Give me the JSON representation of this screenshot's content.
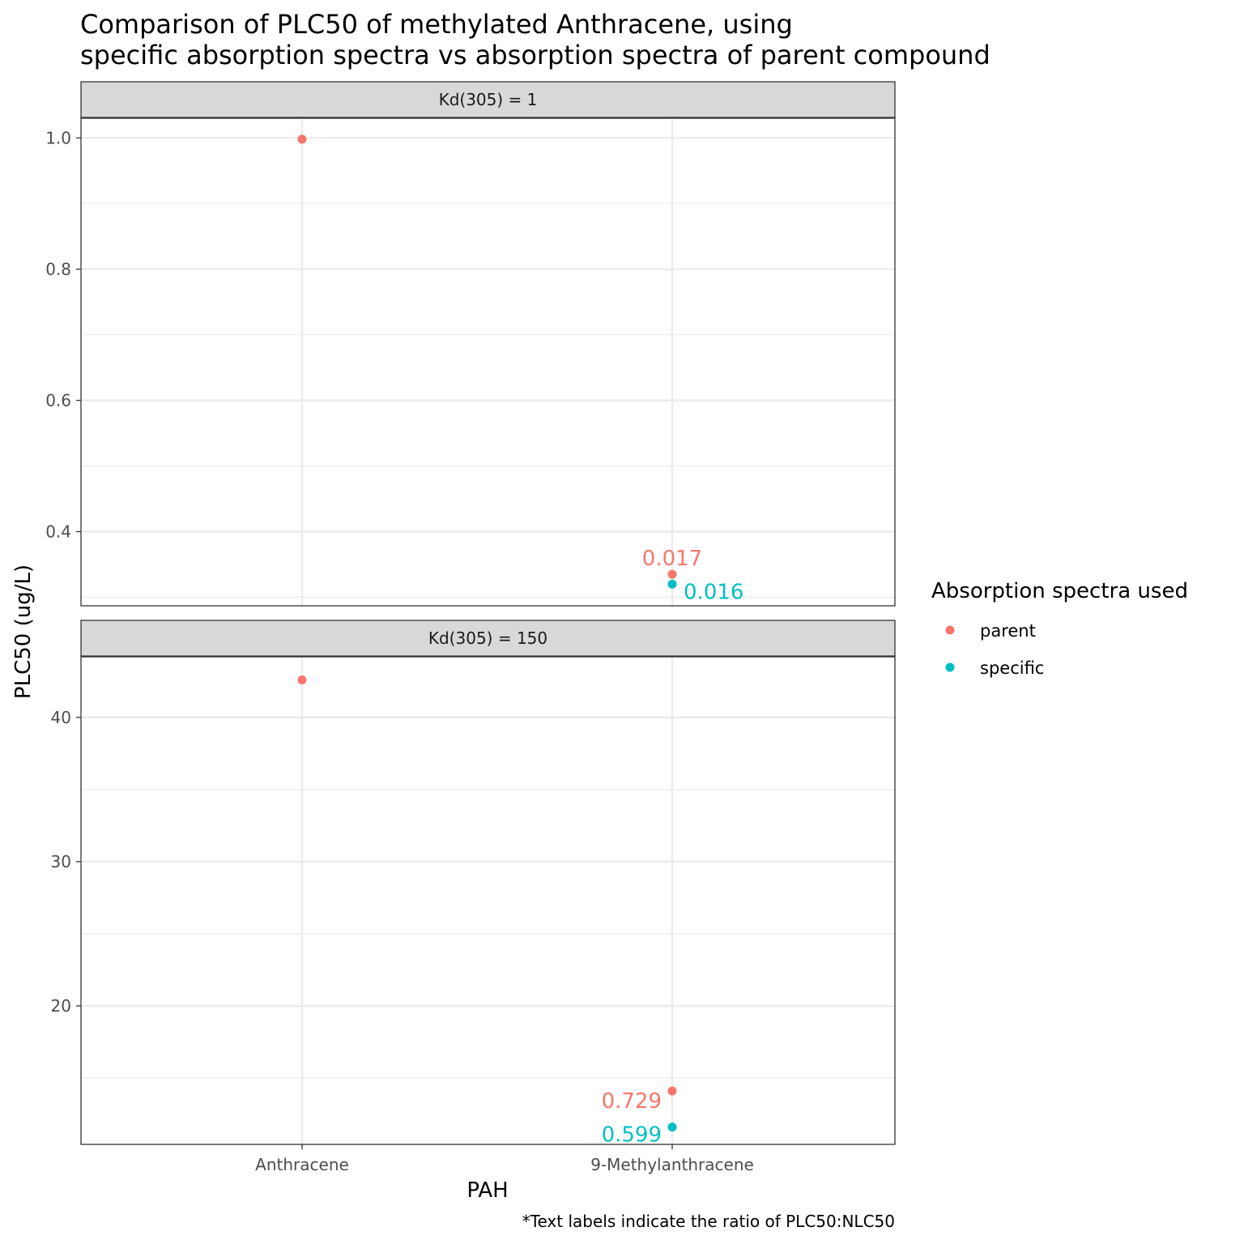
{
  "chart_data": {
    "type": "scatter",
    "title_lines": [
      "Comparison of PLC50 of methylated Anthracene, using",
      "specific absorption spectra vs absorption spectra of parent compound"
    ],
    "xlabel": "PAH",
    "ylabel": "PLC50 (ug/L)",
    "caption": "*Text labels indicate the ratio of PLC50:NLC50",
    "categories": [
      "Anthracene",
      "9-Methylanthracene"
    ],
    "legend": {
      "title": "Absorption spectra used",
      "position": "right",
      "entries": [
        {
          "name": "parent",
          "color": "#F8766D"
        },
        {
          "name": "specific",
          "color": "#00BFC4"
        }
      ]
    },
    "panels": [
      {
        "strip": "Kd(305) = 1",
        "ylim": [
          0.287,
          1.03
        ],
        "yticks": [
          0.4,
          0.6,
          0.8,
          1.0
        ],
        "ytick_labels": [
          "0.4",
          "0.6",
          "0.8",
          "1.0"
        ],
        "yminor": [
          0.3,
          0.5,
          0.7,
          0.9
        ],
        "points": [
          {
            "category": "Anthracene",
            "series": "parent",
            "y": 0.998,
            "label": ""
          },
          {
            "category": "9-Methylanthracene",
            "series": "parent",
            "y": 0.335,
            "label": "0.017"
          },
          {
            "category": "9-Methylanthracene",
            "series": "specific",
            "y": 0.32,
            "label": "0.016"
          }
        ]
      },
      {
        "strip": "Kd(305) = 150",
        "ylim": [
          10.4,
          44.2
        ],
        "yticks": [
          20,
          30,
          40
        ],
        "ytick_labels": [
          "20",
          "30",
          "40"
        ],
        "yminor": [
          15,
          25,
          35
        ],
        "points": [
          {
            "category": "Anthracene",
            "series": "parent",
            "y": 42.6,
            "label": ""
          },
          {
            "category": "9-Methylanthracene",
            "series": "parent",
            "y": 14.1,
            "label": "0.729"
          },
          {
            "category": "9-Methylanthracene",
            "series": "specific",
            "y": 11.6,
            "label": "0.599"
          }
        ]
      }
    ]
  }
}
